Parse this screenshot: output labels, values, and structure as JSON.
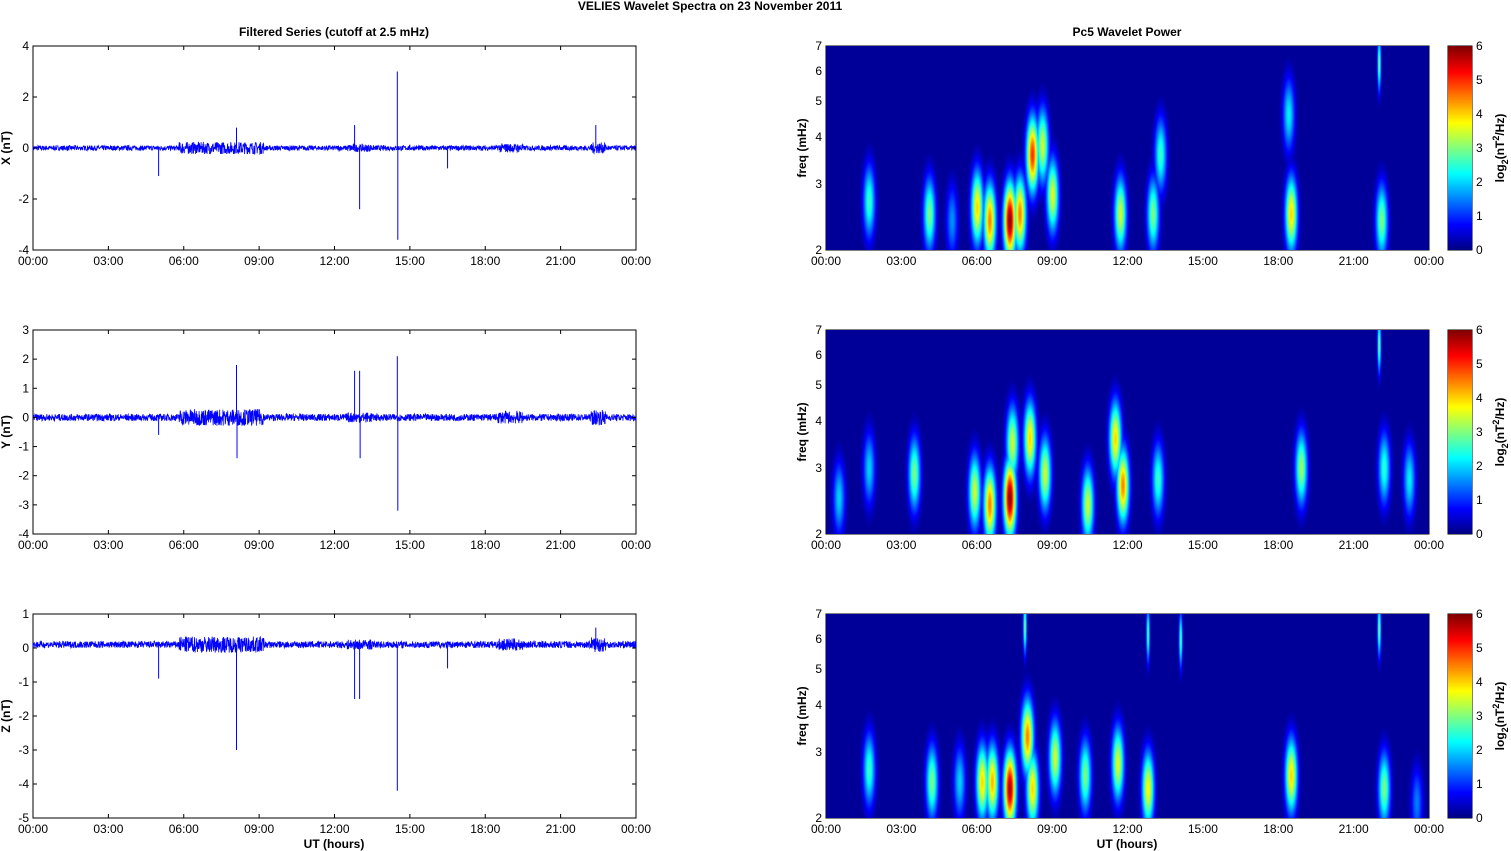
{
  "figure_title": "VELIES Wavelet Spectra on 23 November  2011",
  "left_title": "Filtered Series (cutoff at 2.5 mHz)",
  "right_title": "Pc5 Wavelet Power",
  "xlabel": "UT (hours)",
  "x_ticks": [
    "00:00",
    "03:00",
    "06:00",
    "09:00",
    "12:00",
    "15:00",
    "18:00",
    "21:00",
    "00:00"
  ],
  "freq_label": "freq (mHz)",
  "freq_ticks": [
    2,
    3,
    4,
    5,
    6,
    7
  ],
  "colorbar_label": "log2(nT2/Hz)",
  "colorbar_ticks": [
    0,
    1,
    2,
    3,
    4,
    5,
    6
  ],
  "line_color": "#0000ff",
  "chart_data": [
    {
      "type": "line",
      "ylabel": "X (nT)",
      "ylim": [
        -4,
        4
      ],
      "yticks": [
        -4,
        -2,
        0,
        2,
        4
      ],
      "xlim": [
        0,
        24
      ],
      "noise": 0.1,
      "offset": 0,
      "spikes": [
        [
          5.0,
          -1.1
        ],
        [
          8.1,
          0.8
        ],
        [
          12.8,
          0.9
        ],
        [
          13.0,
          -2.4
        ],
        [
          14.5,
          3.0
        ],
        [
          14.52,
          -3.6
        ],
        [
          16.5,
          -0.8
        ],
        [
          22.4,
          0.9
        ]
      ]
    },
    {
      "type": "line",
      "ylabel": "Y (nT)",
      "ylim": [
        -4,
        3
      ],
      "yticks": [
        -4,
        -3,
        -2,
        -1,
        0,
        1,
        2,
        3
      ],
      "xlim": [
        0,
        24
      ],
      "noise": 0.12,
      "offset": 0,
      "spikes": [
        [
          5.0,
          -0.6
        ],
        [
          8.1,
          1.8
        ],
        [
          8.12,
          -1.4
        ],
        [
          12.8,
          1.6
        ],
        [
          13.0,
          1.6
        ],
        [
          13.02,
          -1.4
        ],
        [
          14.5,
          2.1
        ],
        [
          14.52,
          -3.2
        ]
      ]
    },
    {
      "type": "line",
      "ylabel": "Z (nT)",
      "ylim": [
        -5,
        1
      ],
      "yticks": [
        -5,
        -4,
        -3,
        -2,
        -1,
        0,
        1
      ],
      "xlim": [
        0,
        24
      ],
      "noise": 0.1,
      "offset": 0.1,
      "spikes": [
        [
          5.0,
          -0.9
        ],
        [
          8.1,
          -3.0
        ],
        [
          12.8,
          -1.5
        ],
        [
          13.0,
          -1.5
        ],
        [
          14.5,
          -4.2
        ],
        [
          16.5,
          -0.6
        ],
        [
          22.4,
          0.6
        ]
      ]
    },
    {
      "type": "heatmap",
      "ylim_mHz": [
        2,
        7
      ],
      "clim": [
        0,
        6
      ],
      "blobs": [
        [
          1.7,
          2.7,
          2.6
        ],
        [
          4.1,
          2.5,
          3
        ],
        [
          5.0,
          2.4,
          1.6
        ],
        [
          6.0,
          2.6,
          4
        ],
        [
          6.5,
          2.4,
          4.5
        ],
        [
          7.3,
          2.4,
          6
        ],
        [
          7.7,
          2.5,
          4.5
        ],
        [
          8.2,
          3.6,
          5
        ],
        [
          8.6,
          3.8,
          3.5
        ],
        [
          9.0,
          2.8,
          3.6
        ],
        [
          11.7,
          2.5,
          3.5
        ],
        [
          13.0,
          2.5,
          3
        ],
        [
          13.3,
          3.6,
          2.6
        ],
        [
          18.5,
          2.5,
          4
        ],
        [
          18.4,
          4.6,
          2.2
        ],
        [
          22.1,
          2.4,
          3
        ],
        [
          22.0,
          6.3,
          3
        ]
      ]
    },
    {
      "type": "heatmap",
      "ylim_mHz": [
        2,
        7
      ],
      "clim": [
        0,
        6
      ],
      "blobs": [
        [
          0.5,
          2.5,
          2
        ],
        [
          1.7,
          3.0,
          2
        ],
        [
          3.5,
          2.9,
          3
        ],
        [
          5.9,
          2.6,
          3.5
        ],
        [
          6.5,
          2.4,
          4.5
        ],
        [
          7.3,
          2.5,
          6
        ],
        [
          7.4,
          3.5,
          3.5
        ],
        [
          8.1,
          3.6,
          4
        ],
        [
          8.7,
          2.9,
          3.5
        ],
        [
          10.4,
          2.4,
          3.5
        ],
        [
          11.5,
          3.6,
          4
        ],
        [
          11.8,
          2.7,
          4.5
        ],
        [
          13.2,
          2.8,
          2.6
        ],
        [
          18.9,
          3.0,
          3.2
        ],
        [
          22.2,
          3.0,
          2.5
        ],
        [
          22.0,
          6.4,
          3
        ],
        [
          23.2,
          2.8,
          2.2
        ]
      ]
    },
    {
      "type": "heatmap",
      "ylim_mHz": [
        2,
        7
      ],
      "clim": [
        0,
        6
      ],
      "blobs": [
        [
          1.7,
          2.7,
          2.6
        ],
        [
          4.2,
          2.5,
          3
        ],
        [
          5.3,
          2.5,
          2
        ],
        [
          6.2,
          2.5,
          4
        ],
        [
          6.6,
          2.5,
          4.2
        ],
        [
          7.3,
          2.4,
          5.8
        ],
        [
          8.0,
          3.3,
          4.5
        ],
        [
          8.2,
          2.4,
          4
        ],
        [
          9.1,
          2.9,
          3.5
        ],
        [
          10.3,
          2.6,
          3
        ],
        [
          11.6,
          2.8,
          3.6
        ],
        [
          12.8,
          2.4,
          3.8
        ],
        [
          18.5,
          2.6,
          4
        ],
        [
          22.2,
          2.4,
          3
        ],
        [
          22.0,
          6.4,
          3
        ],
        [
          7.9,
          6.5,
          3
        ],
        [
          14.1,
          6.0,
          2.8
        ],
        [
          12.8,
          6.2,
          2.8
        ],
        [
          23.5,
          2.2,
          1.5
        ]
      ]
    }
  ]
}
